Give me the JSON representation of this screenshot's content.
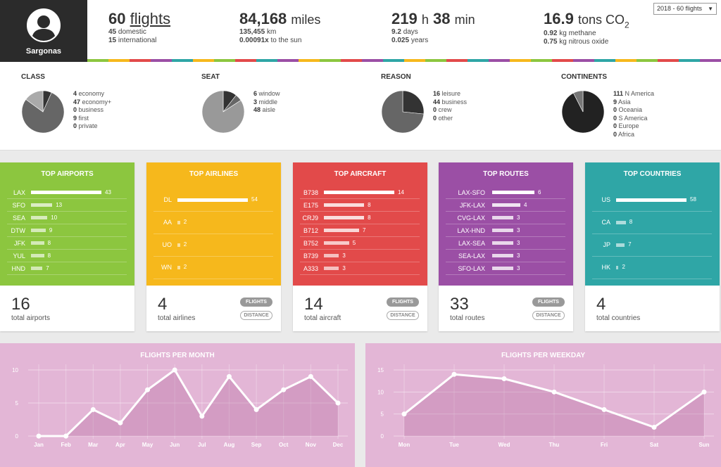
{
  "profile": {
    "name": "Sargonas"
  },
  "stats": {
    "flights": {
      "value": "60",
      "unit": "flights",
      "line1_num": "45",
      "line1_text": "domestic",
      "line2_num": "15",
      "line2_text": "international"
    },
    "miles": {
      "value": "84,168",
      "unit": "miles",
      "line1_num": "135,455",
      "line1_text": "km",
      "line2_num": "0.00091x",
      "line2_text": "to the sun"
    },
    "time": {
      "hours": "219",
      "h_unit": "h",
      "minutes": "38",
      "m_unit": "min",
      "line1_num": "9.2",
      "line1_text": "days",
      "line2_num": "0.025",
      "line2_text": "years"
    },
    "co2": {
      "value": "16.9",
      "unit": "tons CO",
      "sub": "2",
      "line1_num": "0.92",
      "line1_text": "kg methane",
      "line2_num": "0.75",
      "line2_text": "kg nitrous oxide"
    }
  },
  "year_select": {
    "value": "2018 - 60 flights",
    "arrow": "▼"
  },
  "stripe_colors": [
    "#8cc63f",
    "#f6b81c",
    "#e24a4a",
    "#9b4fa5",
    "#2fa6a6",
    "#f6b81c",
    "#8cc63f",
    "#e24a4a",
    "#2fa6a6",
    "#9b4fa5",
    "#f6b81c",
    "#8cc63f",
    "#e24a4a",
    "#9b4fa5",
    "#2fa6a6",
    "#f6b81c",
    "#8cc63f",
    "#e24a4a",
    "#2fa6a6",
    "#9b4fa5",
    "#f6b81c",
    "#8cc63f",
    "#e24a4a",
    "#9b4fa5",
    "#2fa6a6",
    "#f6b81c",
    "#8cc63f",
    "#e24a4a",
    "#2fa6a6",
    "#9b4fa5"
  ],
  "pies": [
    {
      "title": "CLASS",
      "items": [
        {
          "num": "4",
          "label": "economy"
        },
        {
          "num": "47",
          "label": "economy+"
        },
        {
          "num": "0",
          "label": "business"
        },
        {
          "num": "9",
          "label": "first"
        },
        {
          "num": "0",
          "label": "private"
        }
      ],
      "slices": [
        {
          "value": 4,
          "color": "#333333"
        },
        {
          "value": 47,
          "color": "#666666"
        },
        {
          "value": 9,
          "color": "#aaaaaa"
        }
      ]
    },
    {
      "title": "SEAT",
      "items": [
        {
          "num": "6",
          "label": "window"
        },
        {
          "num": "3",
          "label": "middle"
        },
        {
          "num": "48",
          "label": "aisle"
        }
      ],
      "slices": [
        {
          "value": 6,
          "color": "#333333"
        },
        {
          "value": 3,
          "color": "#666666"
        },
        {
          "value": 48,
          "color": "#999999"
        }
      ]
    },
    {
      "title": "REASON",
      "items": [
        {
          "num": "16",
          "label": "leisure"
        },
        {
          "num": "44",
          "label": "business"
        },
        {
          "num": "0",
          "label": "crew"
        },
        {
          "num": "0",
          "label": "other"
        }
      ],
      "slices": [
        {
          "value": 16,
          "color": "#333333"
        },
        {
          "value": 44,
          "color": "#666666"
        }
      ]
    },
    {
      "title": "CONTINENTS",
      "items": [
        {
          "num": "111",
          "label": "N America"
        },
        {
          "num": "9",
          "label": "Asia"
        },
        {
          "num": "0",
          "label": "Oceania"
        },
        {
          "num": "0",
          "label": "S America"
        },
        {
          "num": "0",
          "label": "Europe"
        },
        {
          "num": "0",
          "label": "Africa"
        }
      ],
      "slices": [
        {
          "value": 111,
          "color": "#222222"
        },
        {
          "value": 9,
          "color": "#777777"
        }
      ]
    }
  ],
  "cards": [
    {
      "title": "TOP AIRPORTS",
      "color": "#8cc63f",
      "count": "16",
      "label": "total airports",
      "pills": false,
      "rows": [
        {
          "name": "LAX",
          "value": 43
        },
        {
          "name": "SFO",
          "value": 13
        },
        {
          "name": "SEA",
          "value": 10
        },
        {
          "name": "DTW",
          "value": 9
        },
        {
          "name": "JFK",
          "value": 8
        },
        {
          "name": "YUL",
          "value": 8
        },
        {
          "name": "HND",
          "value": 7
        }
      ]
    },
    {
      "title": "TOP AIRLINES",
      "color": "#f6b81c",
      "count": "4",
      "label": "total airlines",
      "pills": true,
      "rows": [
        {
          "name": "DL",
          "value": 54
        },
        {
          "name": "AA",
          "value": 2
        },
        {
          "name": "UO",
          "value": 2
        },
        {
          "name": "WN",
          "value": 2
        }
      ]
    },
    {
      "title": "TOP AIRCRAFT",
      "color": "#e24a4a",
      "count": "14",
      "label": "total aircraft",
      "pills": true,
      "rows": [
        {
          "name": "B738",
          "value": 14
        },
        {
          "name": "E175",
          "value": 8
        },
        {
          "name": "CRJ9",
          "value": 8
        },
        {
          "name": "B712",
          "value": 7
        },
        {
          "name": "B752",
          "value": 5
        },
        {
          "name": "B739",
          "value": 3
        },
        {
          "name": "A333",
          "value": 3
        }
      ]
    },
    {
      "title": "TOP ROUTES",
      "color": "#9b4fa5",
      "count": "33",
      "label": "total routes",
      "pills": true,
      "rows": [
        {
          "name": "LAX-SFO",
          "value": 6
        },
        {
          "name": "JFK-LAX",
          "value": 4
        },
        {
          "name": "CVG-LAX",
          "value": 3
        },
        {
          "name": "LAX-HND",
          "value": 3
        },
        {
          "name": "LAX-SEA",
          "value": 3
        },
        {
          "name": "SEA-LAX",
          "value": 3
        },
        {
          "name": "SFO-LAX",
          "value": 3
        }
      ]
    },
    {
      "title": "TOP COUNTRIES",
      "color": "#2fa6a6",
      "count": "4",
      "label": "total countries",
      "pills": false,
      "rows": [
        {
          "name": "US",
          "value": 58
        },
        {
          "name": "CA",
          "value": 8
        },
        {
          "name": "JP",
          "value": 7
        },
        {
          "name": "HK",
          "value": 2
        }
      ]
    }
  ],
  "pill_labels": {
    "flights": "FLIGHTS",
    "distance": "DISTANCE"
  },
  "chart_data": [
    {
      "type": "line",
      "title": "FLIGHTS PER MONTH",
      "categories": [
        "Jan",
        "Feb",
        "Mar",
        "Apr",
        "May",
        "Jun",
        "Jul",
        "Aug",
        "Sep",
        "Oct",
        "Nov",
        "Dec"
      ],
      "values": [
        0,
        0,
        4,
        2,
        7,
        10,
        3,
        9,
        4,
        7,
        9,
        5
      ],
      "ylim": [
        0,
        10
      ],
      "yticks": [
        0,
        5,
        10
      ],
      "grid": true
    },
    {
      "type": "line",
      "title": "FLIGHTS PER WEEKDAY",
      "categories": [
        "Mon",
        "Tue",
        "Wed",
        "Thu",
        "Fri",
        "Sat",
        "Sun"
      ],
      "values": [
        5,
        14,
        13,
        10,
        6,
        2,
        10
      ],
      "ylim": [
        0,
        15
      ],
      "yticks": [
        0,
        5,
        10,
        15
      ],
      "grid": true
    }
  ]
}
